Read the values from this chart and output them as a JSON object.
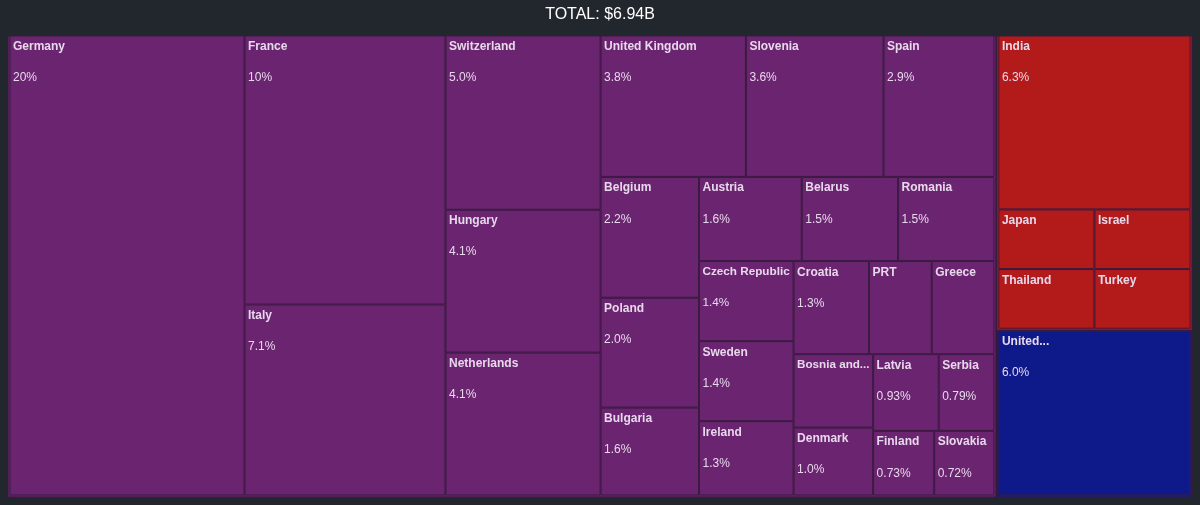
{
  "chart_data": {
    "type": "other",
    "title": "TOTAL: $6.94B",
    "categories": [
      "Germany",
      "France",
      "Italy",
      "Switzerland",
      "Hungary",
      "Netherlands",
      "United Kingdom",
      "Slovenia",
      "Spain",
      "Belgium",
      "Poland",
      "Bulgaria",
      "Austria",
      "Belarus",
      "Romania",
      "Czech Republic",
      "Sweden",
      "Ireland",
      "Croatia",
      "Latvia",
      "Serbia",
      "Finland",
      "Slovakia",
      "Denmark",
      "PRT",
      "Greece",
      "Bosnia and...",
      "India",
      "Japan",
      "Thailand",
      "Israel",
      "Turkey",
      "United..."
    ],
    "values": [
      20,
      10,
      7.1,
      5.0,
      4.1,
      4.1,
      3.8,
      3.6,
      2.9,
      2.2,
      2.0,
      1.6,
      1.6,
      1.5,
      1.5,
      1.4,
      1.4,
      1.3,
      1.3,
      0.93,
      0.79,
      0.73,
      0.72,
      1.0,
      null,
      null,
      null,
      6.3,
      null,
      null,
      null,
      null,
      6.0
    ],
    "value_labels": [
      "20%",
      "10%",
      "7.1%",
      "5.0%",
      "4.1%",
      "4.1%",
      "3.8%",
      "3.6%",
      "2.9%",
      "2.2%",
      "2.0%",
      "1.6%",
      "1.6%",
      "1.5%",
      "1.5%",
      "1.4%",
      "1.4%",
      "1.3%",
      "1.3%",
      "0.93%",
      "0.79%",
      "0.73%",
      "0.72%",
      "1.0%",
      null,
      null,
      null,
      "6.3%",
      null,
      null,
      null,
      null,
      "6.0%"
    ],
    "colors": [
      "#6b2570",
      "#6b2570",
      "#6b2570",
      "#6b2570",
      "#6b2570",
      "#6b2570",
      "#6b2570",
      "#6b2570",
      "#6b2570",
      "#6b2570",
      "#6b2570",
      "#6b2570",
      "#6b2570",
      "#6b2570",
      "#6b2570",
      "#6b2570",
      "#6b2570",
      "#6b2570",
      "#6b2570",
      "#6b2570",
      "#6b2570",
      "#6b2570",
      "#6b2570",
      "#6b2570",
      "#6b2570",
      "#6b2570",
      "#6b2570",
      "#b31b1b",
      "#b31b1b",
      "#b31b1b",
      "#b31b1b",
      "#b31b1b",
      "#0e1a8a"
    ]
  }
}
